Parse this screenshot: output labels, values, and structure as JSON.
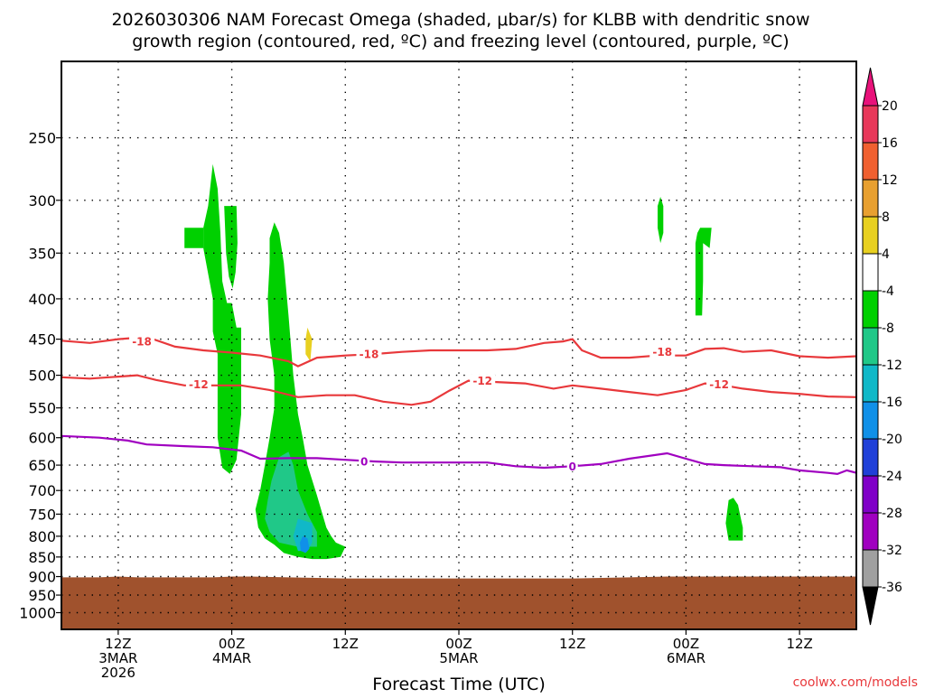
{
  "chart_data": {
    "type": "heatmap",
    "title": [
      "2026030306 NAM Forecast Omega (shaded, μbar/s) for KLBB with dendritic snow",
      "growth region (contoured, red, ºC) and freezing level (contoured, purple, ºC)"
    ],
    "xlabel": "Forecast Time (UTC)",
    "ylabel": "",
    "credit": "coolwx.com/models",
    "x_unit": "hours since 2026-03-03 06Z",
    "x_range": [
      0,
      84
    ],
    "y_range": [
      1050,
      200
    ],
    "y_scale": "log",
    "grid": true,
    "y_ticks": [
      {
        "v": 250,
        "label": "250"
      },
      {
        "v": 300,
        "label": "300"
      },
      {
        "v": 350,
        "label": "350"
      },
      {
        "v": 400,
        "label": "400"
      },
      {
        "v": 450,
        "label": "450"
      },
      {
        "v": 500,
        "label": "500"
      },
      {
        "v": 550,
        "label": "550"
      },
      {
        "v": 600,
        "label": "600"
      },
      {
        "v": 650,
        "label": "650"
      },
      {
        "v": 700,
        "label": "700"
      },
      {
        "v": 750,
        "label": "750"
      },
      {
        "v": 800,
        "label": "800"
      },
      {
        "v": 850,
        "label": "850"
      },
      {
        "v": 900,
        "label": "900"
      },
      {
        "v": 950,
        "label": "950"
      },
      {
        "v": 1000,
        "label": "1000"
      }
    ],
    "x_ticks": [
      {
        "h": 6,
        "l1": "12Z",
        "l2": "3MAR",
        "l3": "2026"
      },
      {
        "h": 18,
        "l1": "00Z",
        "l2": "4MAR",
        "l3": ""
      },
      {
        "h": 30,
        "l1": "12Z",
        "l2": "",
        "l3": ""
      },
      {
        "h": 42,
        "l1": "00Z",
        "l2": "5MAR",
        "l3": ""
      },
      {
        "h": 54,
        "l1": "12Z",
        "l2": "",
        "l3": ""
      },
      {
        "h": 66,
        "l1": "00Z",
        "l2": "6MAR",
        "l3": ""
      },
      {
        "h": 78,
        "l1": "12Z",
        "l2": "",
        "l3": ""
      }
    ],
    "colorbar": {
      "levels": [
        20,
        16,
        12,
        8,
        4,
        -4,
        -8,
        -12,
        -16,
        -20,
        -24,
        -28,
        -32,
        -36
      ],
      "labels": [
        "20",
        "16",
        "12",
        "8",
        "4",
        "-4",
        "-8",
        "-12",
        "-16",
        "-20",
        "-24",
        "-28",
        "-32",
        "-36"
      ],
      "colors": [
        "#e8385a",
        "#f06030",
        "#e8a030",
        "#e8d020",
        "#ffffff",
        "#00d000",
        "#20c888",
        "#10b8c8",
        "#1090e8",
        "#2040d8",
        "#8000c8",
        "#a000c0",
        "#a0a0a0"
      ],
      "top_extend_color": "#e8127a",
      "bottom_extend_color": "#000000"
    },
    "contours": [
      {
        "name": "-18",
        "color": "#e8383b",
        "points": [
          [
            0,
            452
          ],
          [
            3,
            455
          ],
          [
            6,
            450
          ],
          [
            9,
            447
          ],
          [
            12,
            460
          ],
          [
            15,
            465
          ],
          [
            18,
            468
          ],
          [
            21,
            472
          ],
          [
            24,
            480
          ],
          [
            25,
            487
          ],
          [
            27,
            475
          ],
          [
            30,
            472
          ],
          [
            33,
            470
          ],
          [
            36,
            467
          ],
          [
            39,
            465
          ],
          [
            42,
            465
          ],
          [
            45,
            465
          ],
          [
            48,
            463
          ],
          [
            51,
            455
          ],
          [
            53,
            453
          ],
          [
            54,
            450
          ],
          [
            55,
            465
          ],
          [
            57,
            475
          ],
          [
            60,
            475
          ],
          [
            63,
            472
          ],
          [
            66,
            472
          ],
          [
            68,
            463
          ],
          [
            70,
            462
          ],
          [
            72,
            467
          ],
          [
            75,
            465
          ],
          [
            78,
            473
          ],
          [
            81,
            475
          ],
          [
            84,
            473
          ]
        ]
      },
      {
        "name": "-12",
        "color": "#e8383b",
        "points": [
          [
            0,
            503
          ],
          [
            3,
            505
          ],
          [
            6,
            502
          ],
          [
            8,
            500
          ],
          [
            10,
            507
          ],
          [
            13,
            515
          ],
          [
            16,
            515
          ],
          [
            19,
            515
          ],
          [
            22,
            522
          ],
          [
            25,
            533
          ],
          [
            28,
            530
          ],
          [
            31,
            530
          ],
          [
            34,
            540
          ],
          [
            37,
            545
          ],
          [
            39,
            540
          ],
          [
            41,
            523
          ],
          [
            43,
            508
          ],
          [
            46,
            510
          ],
          [
            49,
            512
          ],
          [
            52,
            520
          ],
          [
            54,
            515
          ],
          [
            57,
            520
          ],
          [
            60,
            525
          ],
          [
            63,
            530
          ],
          [
            66,
            522
          ],
          [
            68,
            512
          ],
          [
            70,
            515
          ],
          [
            72,
            520
          ],
          [
            75,
            525
          ],
          [
            78,
            528
          ],
          [
            81,
            532
          ],
          [
            84,
            533
          ]
        ]
      },
      {
        "name": "0",
        "color": "#a000c0",
        "points": [
          [
            0,
            597
          ],
          [
            4,
            600
          ],
          [
            7,
            605
          ],
          [
            9,
            612
          ],
          [
            13,
            615
          ],
          [
            16,
            617
          ],
          [
            19,
            623
          ],
          [
            21,
            638
          ],
          [
            24,
            637
          ],
          [
            27,
            637
          ],
          [
            30,
            640
          ],
          [
            33,
            643
          ],
          [
            36,
            645
          ],
          [
            39,
            645
          ],
          [
            42,
            645
          ],
          [
            45,
            645
          ],
          [
            48,
            652
          ],
          [
            51,
            655
          ],
          [
            54,
            652
          ],
          [
            57,
            648
          ],
          [
            60,
            638
          ],
          [
            64,
            628
          ],
          [
            66,
            638
          ],
          [
            68,
            648
          ],
          [
            70,
            650
          ],
          [
            73,
            652
          ],
          [
            76,
            654
          ],
          [
            78,
            660
          ],
          [
            81,
            665
          ],
          [
            82,
            667
          ],
          [
            83,
            660
          ],
          [
            84,
            665
          ]
        ]
      }
    ],
    "contour_labels": [
      {
        "text": "-18",
        "x": 8.5,
        "p": 453,
        "color": "#e8383b"
      },
      {
        "text": "-18",
        "x": 32.5,
        "p": 470,
        "color": "#e8383b"
      },
      {
        "text": "-18",
        "x": 63.5,
        "p": 467,
        "color": "#e8383b"
      },
      {
        "text": "-12",
        "x": 14.5,
        "p": 513,
        "color": "#e8383b"
      },
      {
        "text": "-12",
        "x": 44.5,
        "p": 508,
        "color": "#e8383b"
      },
      {
        "text": "-12",
        "x": 69.5,
        "p": 513,
        "color": "#e8383b"
      },
      {
        "text": "0",
        "x": 32.0,
        "p": 643,
        "color": "#a000c0"
      },
      {
        "text": "0",
        "x": 54.0,
        "p": 652,
        "color": "#a000c0"
      }
    ],
    "shaded_regions": [
      {
        "level": "-4 to -8",
        "color": "#00d000",
        "points": [
          [
            13,
            325
          ],
          [
            15,
            325
          ],
          [
            15,
            345
          ],
          [
            13,
            345
          ]
        ]
      },
      {
        "level": "-4 to -8",
        "color": "#00d000",
        "points": [
          [
            15,
            325
          ],
          [
            15.5,
            305
          ],
          [
            16,
            270
          ],
          [
            16.5,
            290
          ],
          [
            16.8,
            330
          ],
          [
            17,
            380
          ],
          [
            17.5,
            405
          ],
          [
            18,
            405
          ],
          [
            18.5,
            435
          ],
          [
            19,
            435
          ],
          [
            19,
            470
          ],
          [
            19,
            560
          ],
          [
            18.5,
            640
          ],
          [
            17.8,
            667
          ],
          [
            17,
            655
          ],
          [
            16.5,
            600
          ],
          [
            16.5,
            470
          ],
          [
            16,
            440
          ],
          [
            16,
            400
          ],
          [
            15,
            345
          ]
        ]
      },
      {
        "level": "-4 to -8",
        "color": "#00d000",
        "points": [
          [
            17.2,
            305
          ],
          [
            18.5,
            305
          ],
          [
            18.6,
            340
          ],
          [
            18.4,
            370
          ],
          [
            18.1,
            388
          ],
          [
            17.7,
            375
          ],
          [
            17.4,
            350
          ]
        ]
      },
      {
        "level": "-4 to -8",
        "color": "#00d000",
        "points": [
          [
            22,
            335
          ],
          [
            22.5,
            320
          ],
          [
            23,
            330
          ],
          [
            23.5,
            360
          ],
          [
            24,
            420
          ],
          [
            24.5,
            500
          ],
          [
            25,
            560
          ],
          [
            25.5,
            600
          ],
          [
            26,
            650
          ],
          [
            27,
            710
          ],
          [
            28,
            780
          ],
          [
            28.5,
            800
          ],
          [
            29,
            815
          ],
          [
            30,
            825
          ],
          [
            29.5,
            850
          ],
          [
            28,
            855
          ],
          [
            26.5,
            855
          ],
          [
            25,
            850
          ],
          [
            23.5,
            840
          ],
          [
            22.5,
            820
          ],
          [
            21.5,
            805
          ],
          [
            20.8,
            780
          ],
          [
            20.5,
            740
          ],
          [
            21,
            700
          ],
          [
            21.5,
            650
          ],
          [
            22,
            600
          ],
          [
            22.5,
            550
          ],
          [
            22.5,
            500
          ],
          [
            22,
            450
          ],
          [
            21.8,
            400
          ],
          [
            22,
            360
          ]
        ]
      },
      {
        "level": "-8 to -12",
        "color": "#20c888",
        "points": [
          [
            23,
            635
          ],
          [
            24,
            625
          ],
          [
            24.5,
            650
          ],
          [
            25,
            700
          ],
          [
            26,
            750
          ],
          [
            27,
            790
          ],
          [
            27,
            825
          ],
          [
            25,
            825
          ],
          [
            23,
            815
          ],
          [
            22,
            790
          ],
          [
            21.5,
            760
          ],
          [
            21.8,
            720
          ],
          [
            22.2,
            680
          ]
        ]
      },
      {
        "level": "-12 to -16",
        "color": "#10b8c8",
        "points": [
          [
            25,
            760
          ],
          [
            26.5,
            770
          ],
          [
            26.5,
            815
          ],
          [
            26,
            835
          ],
          [
            25,
            835
          ],
          [
            24.5,
            800
          ]
        ]
      },
      {
        "level": "-16 to -20",
        "color": "#1090e8",
        "points": [
          [
            25.5,
            800
          ],
          [
            26,
            805
          ],
          [
            26.2,
            830
          ],
          [
            25.8,
            840
          ],
          [
            25.3,
            835
          ],
          [
            25.2,
            815
          ]
        ]
      },
      {
        "level": "-4 to -8",
        "color": "#00d000",
        "points": [
          [
            63.3,
            297
          ],
          [
            63.6,
            305
          ],
          [
            63.6,
            330
          ],
          [
            63.3,
            340
          ],
          [
            63.0,
            325
          ],
          [
            63.0,
            305
          ]
        ]
      },
      {
        "level": "-4 to -8",
        "color": "#00d000",
        "points": [
          [
            67.5,
            325
          ],
          [
            68.7,
            325
          ],
          [
            68.5,
            345
          ],
          [
            67.8,
            340
          ],
          [
            67.8,
            380
          ],
          [
            67.7,
            420
          ],
          [
            67.0,
            420
          ],
          [
            67.0,
            340
          ],
          [
            67.2,
            330
          ]
        ]
      },
      {
        "level": "-4 to -8",
        "color": "#00d000",
        "points": [
          [
            70.5,
            720
          ],
          [
            71,
            715
          ],
          [
            71.5,
            730
          ],
          [
            72,
            780
          ],
          [
            72,
            810
          ],
          [
            70.5,
            810
          ],
          [
            70.2,
            770
          ]
        ]
      },
      {
        "level": "4 to 8",
        "color": "#e8d020",
        "points": [
          [
            26,
            435
          ],
          [
            26.5,
            450
          ],
          [
            26.3,
            480
          ],
          [
            25.8,
            470
          ],
          [
            25.8,
            450
          ]
        ]
      }
    ],
    "terrain": {
      "color": "#a0522d",
      "surface_pressure": [
        [
          0,
          902
        ],
        [
          4,
          902
        ],
        [
          6,
          900
        ],
        [
          8,
          902
        ],
        [
          12,
          902
        ],
        [
          16,
          902
        ],
        [
          18,
          900
        ],
        [
          20,
          900
        ],
        [
          24,
          902
        ],
        [
          30,
          905
        ],
        [
          36,
          905
        ],
        [
          42,
          905
        ],
        [
          48,
          905
        ],
        [
          54,
          905
        ],
        [
          60,
          902
        ],
        [
          64,
          900
        ],
        [
          70,
          900
        ],
        [
          76,
          900
        ],
        [
          84,
          900
        ]
      ]
    }
  }
}
